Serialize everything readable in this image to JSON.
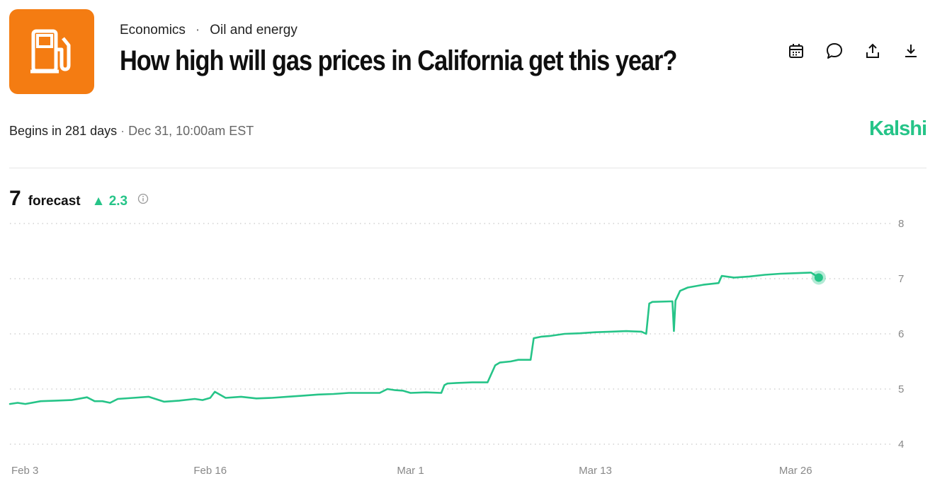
{
  "header": {
    "category": "Economics",
    "separator": "·",
    "subcategory": "Oil and energy",
    "title": "How high will gas prices in California get this year?",
    "logo_icon": "gas-pump-icon",
    "logo_color": "#f47c12"
  },
  "actions": [
    {
      "icon": "calendar-icon"
    },
    {
      "icon": "comment-icon"
    },
    {
      "icon": "share-icon"
    },
    {
      "icon": "download-icon"
    }
  ],
  "schedule": {
    "begins": "Begins in 281 days",
    "dot": "·",
    "date": "Dec 31, 10:00am EST"
  },
  "brand": "Kalshi",
  "forecast": {
    "value": "7",
    "label": "forecast",
    "change": "▲ 2.3"
  },
  "colors": {
    "accent": "#26c488",
    "grid": "#c8c8c8",
    "axis_text": "#888888"
  },
  "chart_data": {
    "type": "line",
    "title": "",
    "xlabel": "",
    "ylabel": "",
    "ylim": [
      4,
      8
    ],
    "yticks": [
      4,
      5,
      6,
      7,
      8
    ],
    "xtick_labels": [
      "Feb 3",
      "Feb 16",
      "Mar 1",
      "Mar 13",
      "Mar 26"
    ],
    "x_range_days": [
      0,
      56
    ],
    "xtick_days": [
      0,
      13,
      26,
      38,
      51
    ],
    "series": [
      {
        "name": "forecast",
        "x_days": [
          0,
          0.5,
          1,
          2,
          3,
          4,
          5,
          5.5,
          6,
          6.5,
          7,
          8,
          9,
          10,
          11,
          12,
          12.5,
          13,
          13.3,
          14,
          15,
          16,
          17,
          18,
          19,
          20,
          21,
          22,
          23,
          24,
          24.5,
          25,
          25.5,
          26,
          27,
          28,
          28.2,
          28.4,
          29,
          30,
          31,
          31.5,
          31.8,
          32.5,
          33,
          33.8,
          34,
          34.5,
          35,
          36,
          37,
          38,
          39,
          40,
          41,
          41.3,
          41.5,
          41.7,
          43,
          43.1,
          43.2,
          43.5,
          44,
          45,
          46,
          46.2,
          47,
          48,
          49,
          50,
          51,
          52,
          52.5
        ],
        "values": [
          4.73,
          4.75,
          4.73,
          4.78,
          4.79,
          4.8,
          4.85,
          4.78,
          4.78,
          4.75,
          4.82,
          4.84,
          4.86,
          4.77,
          4.79,
          4.82,
          4.8,
          4.84,
          4.95,
          4.84,
          4.86,
          4.83,
          4.84,
          4.86,
          4.88,
          4.9,
          4.91,
          4.93,
          4.93,
          4.93,
          5.0,
          4.98,
          4.97,
          4.93,
          4.94,
          4.93,
          5.07,
          5.1,
          5.11,
          5.12,
          5.12,
          5.43,
          5.48,
          5.5,
          5.53,
          5.53,
          5.92,
          5.95,
          5.96,
          6.0,
          6.01,
          6.03,
          6.04,
          6.05,
          6.04,
          6.0,
          6.55,
          6.58,
          6.59,
          6.05,
          6.6,
          6.78,
          6.84,
          6.89,
          6.92,
          7.05,
          7.02,
          7.04,
          7.07,
          7.09,
          7.1,
          7.11,
          7.02
        ]
      }
    ],
    "current_value": 7
  }
}
